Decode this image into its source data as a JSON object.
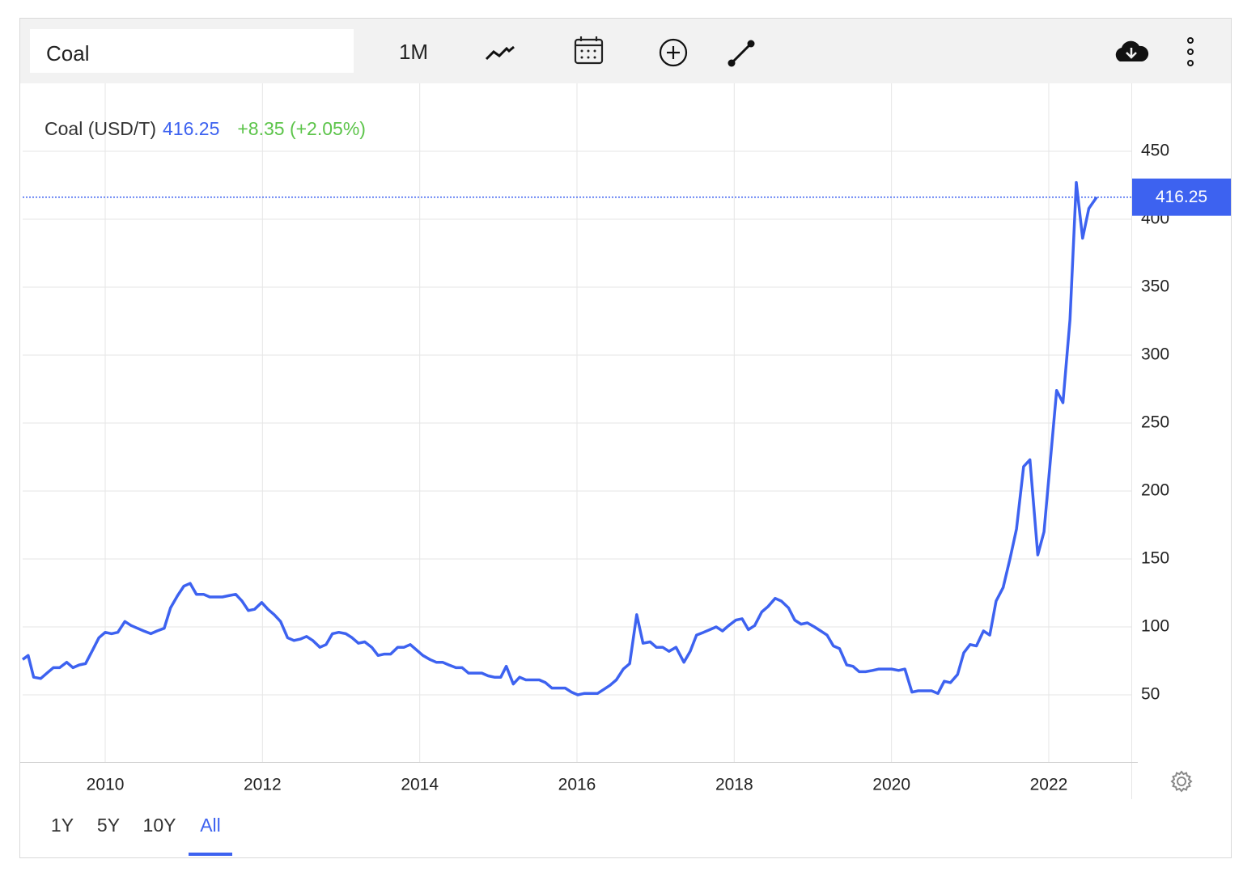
{
  "toolbar": {
    "search": "Coal",
    "interval": "1M"
  },
  "ranges": [
    "1Y",
    "5Y",
    "10Y",
    "All"
  ],
  "active_range": "All",
  "chart_data": {
    "type": "line",
    "change": "+8.35 (+2.05%)",
    "change_color": "#5cc44a",
    "series": [
      {
        "name": "Coal (USD/T)",
        "color": "#3d62f0",
        "values": [
          76,
          79,
          63,
          62,
          66,
          70,
          70,
          74,
          70,
          72,
          73,
          83,
          92,
          96,
          95,
          96,
          104,
          101,
          99,
          97,
          95,
          97,
          99,
          114,
          123,
          130,
          132,
          124,
          124,
          122,
          122,
          122,
          123,
          124,
          119,
          112,
          113,
          118,
          113,
          109,
          104,
          92,
          90,
          91,
          93,
          90,
          85,
          87,
          95,
          96,
          95,
          92,
          88,
          89,
          85,
          79,
          80,
          80,
          85,
          85,
          87,
          83,
          79,
          76,
          74,
          74,
          72,
          70,
          70,
          66,
          66,
          66,
          64,
          63,
          63,
          71,
          58,
          63,
          61,
          61,
          61,
          59,
          55,
          55,
          55,
          52,
          50,
          51,
          51,
          51,
          54,
          57,
          61,
          69,
          73,
          109,
          88,
          89,
          85,
          85,
          82,
          85,
          74,
          82,
          94,
          96,
          98,
          100,
          97,
          101,
          105,
          106,
          98,
          101,
          111,
          115,
          121,
          119,
          114,
          105,
          102,
          103,
          100,
          97,
          94,
          86,
          84,
          72,
          71,
          67,
          67,
          68,
          69,
          69,
          69,
          68,
          69,
          52,
          53,
          53,
          53,
          51,
          60,
          59,
          65,
          81,
          87,
          86,
          97,
          94,
          119,
          129,
          151,
          172,
          218,
          223,
          153,
          170,
          222,
          274,
          265,
          326,
          427,
          386,
          407.9,
          416.25
        ]
      }
    ],
    "x": [
      2008.95,
      2009.02,
      2009.09,
      2009.18,
      2009.26,
      2009.34,
      2009.42,
      2009.51,
      2009.59,
      2009.67,
      2009.75,
      2009.84,
      2009.92,
      2010.0,
      2010.08,
      2010.16,
      2010.25,
      2010.33,
      2010.41,
      2010.49,
      2010.58,
      2010.66,
      2010.75,
      2010.83,
      2010.92,
      2011.0,
      2011.08,
      2011.16,
      2011.25,
      2011.33,
      2011.41,
      2011.49,
      2011.57,
      2011.66,
      2011.74,
      2011.82,
      2011.9,
      2011.99,
      2012.07,
      2012.15,
      2012.23,
      2012.32,
      2012.4,
      2012.48,
      2012.56,
      2012.64,
      2012.73,
      2012.81,
      2012.89,
      2012.97,
      2013.06,
      2013.14,
      2013.22,
      2013.3,
      2013.39,
      2013.47,
      2013.55,
      2013.63,
      2013.72,
      2013.8,
      2013.88,
      2013.96,
      2014.04,
      2014.13,
      2014.21,
      2014.29,
      2014.37,
      2014.46,
      2014.54,
      2014.62,
      2014.7,
      2014.79,
      2014.87,
      2014.95,
      2015.03,
      2015.1,
      2015.19,
      2015.27,
      2015.35,
      2015.43,
      2015.52,
      2015.6,
      2015.68,
      2015.76,
      2015.85,
      2015.93,
      2016.01,
      2016.09,
      2016.17,
      2016.26,
      2016.34,
      2016.42,
      2016.5,
      2016.59,
      2016.67,
      2016.76,
      2016.84,
      2016.93,
      2017.01,
      2017.09,
      2017.17,
      2017.26,
      2017.36,
      2017.44,
      2017.52,
      2017.61,
      2017.69,
      2017.77,
      2017.85,
      2017.93,
      2018.02,
      2018.1,
      2018.18,
      2018.26,
      2018.35,
      2018.43,
      2018.52,
      2018.6,
      2018.69,
      2018.77,
      2018.85,
      2018.93,
      2019.02,
      2019.1,
      2019.18,
      2019.26,
      2019.34,
      2019.43,
      2019.51,
      2019.59,
      2019.67,
      2019.76,
      2019.84,
      2019.92,
      2020.0,
      2020.09,
      2020.17,
      2020.26,
      2020.34,
      2020.42,
      2020.51,
      2020.59,
      2020.67,
      2020.75,
      2020.84,
      2020.92,
      2021.0,
      2021.08,
      2021.17,
      2021.25,
      2021.33,
      2021.42,
      2021.51,
      2021.59,
      2021.68,
      2021.76,
      2021.86,
      2021.94,
      2022.02,
      2022.1,
      2022.18,
      2022.27,
      2022.35,
      2022.43,
      2022.51,
      2022.61
    ],
    "xlim": [
      2008.95,
      2023.05
    ],
    "xticks": [
      2010,
      2012,
      2014,
      2016,
      2018,
      2020,
      2022
    ],
    "ylim": [
      0,
      500
    ],
    "yticks": [
      50,
      100,
      150,
      200,
      250,
      300,
      350,
      400,
      450
    ],
    "grid": true
  }
}
